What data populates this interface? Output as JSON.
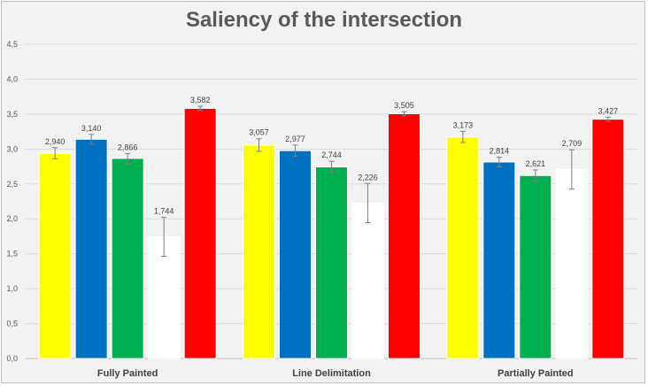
{
  "chart_data": {
    "type": "bar",
    "title": "Saliency of the intersection",
    "categories": [
      "Fully Painted",
      "Line Delimitation",
      "Partially Painted"
    ],
    "series": [
      {
        "color": "#ffff00",
        "values": [
          2.94,
          3.057,
          3.173
        ],
        "labels": [
          "2,940",
          "3,057",
          "3,173"
        ],
        "errors": [
          0.08,
          0.09,
          0.08
        ]
      },
      {
        "color": "#0070c0",
        "values": [
          3.14,
          2.977,
          2.814
        ],
        "labels": [
          "3,140",
          "2,977",
          "2,814"
        ],
        "errors": [
          0.07,
          0.08,
          0.07
        ]
      },
      {
        "color": "#00b050",
        "values": [
          2.866,
          2.744,
          2.621
        ],
        "labels": [
          "2,866",
          "2,744",
          "2,621"
        ],
        "errors": [
          0.07,
          0.08,
          0.08
        ]
      },
      {
        "color": "#ffffff",
        "values": [
          1.744,
          2.226,
          2.709
        ],
        "labels": [
          "1,744",
          "2,226",
          "2,709"
        ],
        "errors": [
          0.28,
          0.28,
          0.28
        ]
      },
      {
        "color": "#ff0000",
        "values": [
          3.582,
          3.505,
          3.427
        ],
        "labels": [
          "3,582",
          "3,505",
          "3,427"
        ],
        "errors": [
          0.03,
          0.03,
          0.03
        ]
      }
    ],
    "ylim": [
      0,
      4.5
    ],
    "yticks": [
      "0,0",
      "0,5",
      "1,0",
      "1,5",
      "2,0",
      "2,5",
      "3,0",
      "3,5",
      "4,0",
      "4,5"
    ],
    "grid": true,
    "legend": "none",
    "error_bars": true
  }
}
